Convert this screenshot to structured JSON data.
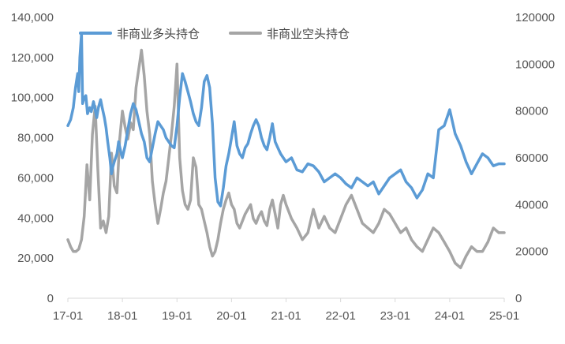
{
  "chart_data": {
    "type": "line",
    "title": "",
    "xlabel": "",
    "ylabel": "",
    "x_ticks": [
      "17-01",
      "18-01",
      "19-01",
      "20-01",
      "21-01",
      "22-01",
      "23-01",
      "24-01",
      "25-01"
    ],
    "x_range": [
      0,
      8
    ],
    "y_left": {
      "range": [
        0,
        140000
      ],
      "ticks": [
        "0",
        "20,000",
        "40,000",
        "60,000",
        "80,000",
        "100,000",
        "120,000",
        "140,000"
      ]
    },
    "y_right": {
      "range": [
        0,
        120000
      ],
      "ticks": [
        "0",
        "20000",
        "40000",
        "60000",
        "80000",
        "100000",
        "120000"
      ]
    },
    "legend_position": "top",
    "grid": false,
    "series": [
      {
        "name": "非商业多头持仓",
        "axis": "left",
        "color": "#5b9bd5",
        "x": [
          0,
          0.05,
          0.1,
          0.14,
          0.18,
          0.2,
          0.22,
          0.25,
          0.27,
          0.3,
          0.33,
          0.36,
          0.4,
          0.43,
          0.47,
          0.5,
          0.53,
          0.56,
          0.6,
          0.63,
          0.67,
          0.7,
          0.73,
          0.77,
          0.8,
          0.82,
          0.85,
          0.9,
          0.93,
          0.97,
          1.0,
          1.05,
          1.1,
          1.15,
          1.2,
          1.25,
          1.3,
          1.35,
          1.4,
          1.45,
          1.5,
          1.55,
          1.6,
          1.65,
          1.7,
          1.75,
          1.8,
          1.85,
          1.9,
          1.95,
          2.0,
          2.05,
          2.1,
          2.15,
          2.2,
          2.25,
          2.3,
          2.35,
          2.4,
          2.45,
          2.5,
          2.55,
          2.6,
          2.65,
          2.7,
          2.75,
          2.8,
          2.85,
          2.9,
          2.95,
          3.0,
          3.05,
          3.1,
          3.15,
          3.2,
          3.25,
          3.3,
          3.35,
          3.4,
          3.45,
          3.5,
          3.55,
          3.6,
          3.65,
          3.7,
          3.75,
          3.8,
          3.85,
          3.9,
          3.95,
          4.0,
          4.1,
          4.2,
          4.3,
          4.4,
          4.5,
          4.6,
          4.7,
          4.8,
          4.9,
          5.0,
          5.1,
          5.2,
          5.3,
          5.4,
          5.5,
          5.6,
          5.7,
          5.8,
          5.9,
          6.0,
          6.1,
          6.2,
          6.3,
          6.4,
          6.5,
          6.6,
          6.7,
          6.8,
          6.9,
          7.0,
          7.1,
          7.2,
          7.3,
          7.4,
          7.5,
          7.6,
          7.7,
          7.8,
          7.9,
          8.0
        ],
        "values": [
          86000,
          89000,
          95000,
          105000,
          112000,
          103000,
          120000,
          132000,
          97000,
          100000,
          101000,
          92000,
          95000,
          93000,
          98000,
          94000,
          90000,
          95000,
          99000,
          95000,
          90000,
          85000,
          78000,
          70000,
          62000,
          65000,
          68000,
          72000,
          78000,
          73000,
          70000,
          76000,
          84000,
          92000,
          97000,
          94000,
          88000,
          82000,
          78000,
          70000,
          68000,
          75000,
          82000,
          88000,
          86000,
          84000,
          80000,
          78000,
          76000,
          75000,
          86000,
          100000,
          112000,
          108000,
          103000,
          98000,
          92000,
          88000,
          86000,
          95000,
          108000,
          111000,
          105000,
          87000,
          60000,
          48000,
          46000,
          55000,
          66000,
          72000,
          80000,
          88000,
          76000,
          72000,
          70000,
          75000,
          77000,
          82000,
          86000,
          89000,
          86000,
          80000,
          76000,
          74000,
          80000,
          87000,
          78000,
          75000,
          72000,
          70000,
          68000,
          70000,
          64000,
          63000,
          67000,
          66000,
          63000,
          58000,
          60000,
          62000,
          60000,
          57000,
          55000,
          60000,
          58000,
          56000,
          58000,
          52000,
          56000,
          60000,
          62000,
          64000,
          58000,
          55000,
          50000,
          54000,
          62000,
          60000,
          84000,
          86000,
          94000,
          82000,
          76000,
          68000,
          62000,
          67000,
          72000,
          70000,
          66000,
          67000,
          67000
        ]
      },
      {
        "name": "非商业空头持仓",
        "axis": "right",
        "color": "#a5a5a5",
        "x": [
          0,
          0.05,
          0.1,
          0.15,
          0.2,
          0.25,
          0.3,
          0.35,
          0.4,
          0.45,
          0.5,
          0.55,
          0.6,
          0.65,
          0.7,
          0.75,
          0.8,
          0.85,
          0.9,
          0.95,
          1.0,
          1.05,
          1.1,
          1.15,
          1.2,
          1.25,
          1.3,
          1.35,
          1.4,
          1.45,
          1.5,
          1.55,
          1.6,
          1.65,
          1.7,
          1.75,
          1.8,
          1.85,
          1.9,
          1.95,
          2.0,
          2.05,
          2.1,
          2.15,
          2.2,
          2.25,
          2.3,
          2.35,
          2.4,
          2.45,
          2.5,
          2.55,
          2.6,
          2.65,
          2.7,
          2.75,
          2.8,
          2.85,
          2.9,
          2.95,
          3.0,
          3.05,
          3.1,
          3.15,
          3.2,
          3.25,
          3.3,
          3.35,
          3.4,
          3.45,
          3.5,
          3.55,
          3.6,
          3.65,
          3.7,
          3.75,
          3.8,
          3.85,
          3.9,
          3.95,
          4.0,
          4.1,
          4.2,
          4.3,
          4.4,
          4.5,
          4.6,
          4.7,
          4.8,
          4.9,
          5.0,
          5.1,
          5.2,
          5.3,
          5.4,
          5.5,
          5.6,
          5.7,
          5.8,
          5.9,
          6.0,
          6.1,
          6.2,
          6.3,
          6.4,
          6.5,
          6.6,
          6.7,
          6.8,
          6.9,
          7.0,
          7.1,
          7.2,
          7.3,
          7.4,
          7.5,
          7.6,
          7.7,
          7.8,
          7.9,
          8.0
        ],
        "values": [
          25000,
          22000,
          20000,
          20000,
          21000,
          25000,
          35000,
          57000,
          42000,
          70000,
          82000,
          55000,
          30000,
          33000,
          28000,
          35000,
          62000,
          48000,
          45000,
          68000,
          80000,
          73000,
          68000,
          75000,
          72000,
          90000,
          98000,
          106000,
          95000,
          80000,
          70000,
          50000,
          40000,
          32000,
          38000,
          45000,
          50000,
          60000,
          70000,
          82000,
          100000,
          60000,
          46000,
          40000,
          38000,
          42000,
          60000,
          56000,
          40000,
          38000,
          33000,
          28000,
          22000,
          18000,
          20000,
          25000,
          32000,
          38000,
          42000,
          45000,
          40000,
          38000,
          32000,
          30000,
          33000,
          36000,
          38000,
          40000,
          34000,
          32000,
          35000,
          37000,
          33000,
          31000,
          38000,
          42000,
          36000,
          30000,
          40000,
          44000,
          40000,
          34000,
          30000,
          25000,
          28000,
          38000,
          30000,
          35000,
          30000,
          28000,
          34000,
          40000,
          44000,
          38000,
          32000,
          30000,
          28000,
          32000,
          38000,
          36000,
          32000,
          28000,
          30000,
          25000,
          22000,
          20000,
          25000,
          30000,
          28000,
          24000,
          20000,
          15000,
          13000,
          18000,
          22000,
          20000,
          20000,
          24000,
          30000,
          28000,
          28000
        ]
      }
    ]
  }
}
